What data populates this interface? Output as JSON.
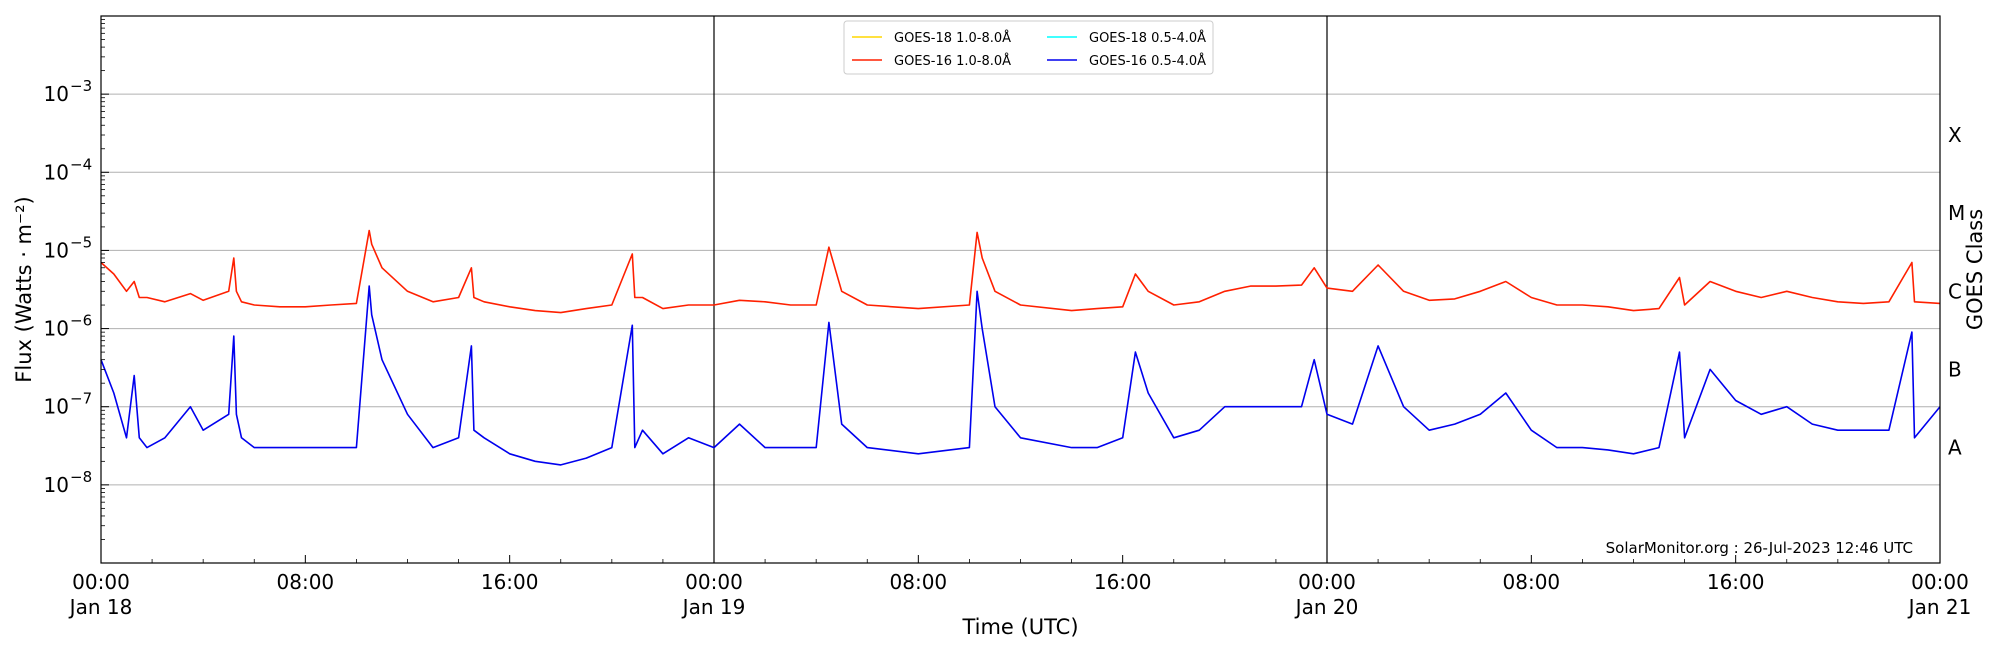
{
  "chart_data": {
    "type": "line",
    "ylabel": "Flux (Watts · m⁻²)",
    "xlabel": "Time (UTC)",
    "right_label": "GOES Class",
    "y_scale": "log",
    "ylim": [
      1e-09,
      0.01
    ],
    "x_range_hours": [
      0,
      72
    ],
    "y_ticks": [
      {
        "exp": -3,
        "label": "10",
        "sup": "−3"
      },
      {
        "exp": -4,
        "label": "10",
        "sup": "−4"
      },
      {
        "exp": -5,
        "label": "10",
        "sup": "−5"
      },
      {
        "exp": -6,
        "label": "10",
        "sup": "−6"
      },
      {
        "exp": -7,
        "label": "10",
        "sup": "−7"
      },
      {
        "exp": -8,
        "label": "10",
        "sup": "−8"
      }
    ],
    "x_ticks": [
      {
        "h": 0,
        "time": "00:00",
        "date": "Jan 18"
      },
      {
        "h": 8,
        "time": "08:00",
        "date": ""
      },
      {
        "h": 16,
        "time": "16:00",
        "date": ""
      },
      {
        "h": 24,
        "time": "00:00",
        "date": "Jan 19"
      },
      {
        "h": 32,
        "time": "08:00",
        "date": ""
      },
      {
        "h": 40,
        "time": "16:00",
        "date": ""
      },
      {
        "h": 48,
        "time": "00:00",
        "date": "Jan 20"
      },
      {
        "h": 56,
        "time": "08:00",
        "date": ""
      },
      {
        "h": 64,
        "time": "16:00",
        "date": ""
      },
      {
        "h": 72,
        "time": "00:00",
        "date": "Jan 21"
      }
    ],
    "day_dividers_hours": [
      24,
      48
    ],
    "grid": "horizontal at decades",
    "legend_placement": "top-center",
    "goes_classes": [
      {
        "label": "X",
        "flux": 0.0003
      },
      {
        "label": "M",
        "flux": 3e-05
      },
      {
        "label": "C",
        "flux": 3e-06
      },
      {
        "label": "B",
        "flux": 3e-07
      },
      {
        "label": "A",
        "flux": 3e-08
      }
    ],
    "credit": "SolarMonitor.org : 26-Jul-2023 12:46 UTC",
    "series": [
      {
        "name": "GOES-18 1.0-8.0Å",
        "color": "#ffd700",
        "x": [],
        "values": []
      },
      {
        "name": "GOES-16 1.0-8.0Å",
        "color": "#ff2000",
        "x": [
          0,
          0.5,
          1,
          1.3,
          1.5,
          1.8,
          2.5,
          3.5,
          4,
          5,
          5.2,
          5.3,
          5.5,
          6,
          7,
          8,
          9,
          10,
          10.5,
          10.6,
          11,
          12,
          13,
          14,
          14.5,
          14.6,
          15,
          16,
          17,
          18,
          19,
          20,
          20.8,
          20.9,
          21.2,
          22,
          23,
          24,
          25,
          26,
          27,
          28,
          28.5,
          29,
          30,
          32,
          34,
          34.3,
          34.5,
          35,
          36,
          38,
          39,
          40,
          40.5,
          41,
          42,
          43,
          44,
          45,
          46,
          47,
          47.5,
          48,
          49,
          50,
          51,
          52,
          53,
          54,
          55,
          56,
          57,
          58,
          59,
          60,
          61,
          61.8,
          62,
          63,
          64,
          65,
          66,
          67,
          68,
          69,
          70,
          70.9,
          71,
          72
        ],
        "values": [
          7e-06,
          5e-06,
          3e-06,
          4e-06,
          2.5e-06,
          2.5e-06,
          2.2e-06,
          2.8e-06,
          2.3e-06,
          3e-06,
          8e-06,
          3e-06,
          2.2e-06,
          2e-06,
          1.9e-06,
          1.9e-06,
          2e-06,
          2.1e-06,
          1.8e-05,
          1.2e-05,
          6e-06,
          3e-06,
          2.2e-06,
          2.5e-06,
          6e-06,
          2.5e-06,
          2.2e-06,
          1.9e-06,
          1.7e-06,
          1.6e-06,
          1.8e-06,
          2e-06,
          9e-06,
          2.5e-06,
          2.5e-06,
          1.8e-06,
          2e-06,
          2e-06,
          2.3e-06,
          2.2e-06,
          2e-06,
          2e-06,
          1.1e-05,
          3e-06,
          2e-06,
          1.8e-06,
          2e-06,
          1.7e-05,
          8e-06,
          3e-06,
          2e-06,
          1.7e-06,
          1.8e-06,
          1.9e-06,
          5e-06,
          3e-06,
          2e-06,
          2.2e-06,
          3e-06,
          3.5e-06,
          3.5e-06,
          3.6e-06,
          6e-06,
          3.3e-06,
          3e-06,
          6.5e-06,
          3e-06,
          2.3e-06,
          2.4e-06,
          3e-06,
          4e-06,
          2.5e-06,
          2e-06,
          2e-06,
          1.9e-06,
          1.7e-06,
          1.8e-06,
          4.5e-06,
          2e-06,
          4e-06,
          3e-06,
          2.5e-06,
          3e-06,
          2.5e-06,
          2.2e-06,
          2.1e-06,
          2.2e-06,
          7e-06,
          2.2e-06,
          2.1e-06
        ]
      },
      {
        "name": "GOES-18 0.5-4.0Å",
        "color": "#00ffff",
        "x": [],
        "values": []
      },
      {
        "name": "GOES-16 0.5-4.0Å",
        "color": "#0000ee",
        "x": [
          0,
          0.5,
          1,
          1.3,
          1.5,
          1.8,
          2.5,
          3.5,
          4,
          5,
          5.2,
          5.3,
          5.5,
          6,
          7,
          8,
          9,
          10,
          10.5,
          10.6,
          11,
          12,
          13,
          14,
          14.5,
          14.6,
          15,
          16,
          17,
          18,
          19,
          20,
          20.8,
          20.9,
          21.2,
          22,
          23,
          24,
          25,
          26,
          27,
          28,
          28.5,
          29,
          30,
          32,
          34,
          34.3,
          34.5,
          35,
          36,
          38,
          39,
          40,
          40.5,
          41,
          42,
          43,
          44,
          45,
          46,
          47,
          47.5,
          48,
          49,
          50,
          51,
          52,
          53,
          54,
          55,
          56,
          57,
          58,
          59,
          60,
          61,
          61.8,
          62,
          63,
          64,
          65,
          66,
          67,
          68,
          69,
          70,
          70.9,
          71,
          72
        ],
        "values": [
          4e-07,
          1.5e-07,
          4e-08,
          2.5e-07,
          4e-08,
          3e-08,
          4e-08,
          1e-07,
          5e-08,
          8e-08,
          8e-07,
          8e-08,
          4e-08,
          3e-08,
          3e-08,
          3e-08,
          3e-08,
          3e-08,
          3.5e-06,
          1.5e-06,
          4e-07,
          8e-08,
          3e-08,
          4e-08,
          6e-07,
          5e-08,
          4e-08,
          2.5e-08,
          2e-08,
          1.8e-08,
          2.2e-08,
          3e-08,
          1.1e-06,
          3e-08,
          5e-08,
          2.5e-08,
          4e-08,
          3e-08,
          6e-08,
          3e-08,
          3e-08,
          3e-08,
          1.2e-06,
          6e-08,
          3e-08,
          2.5e-08,
          3e-08,
          3e-06,
          1e-06,
          1e-07,
          4e-08,
          3e-08,
          3e-08,
          4e-08,
          5e-07,
          1.5e-07,
          4e-08,
          5e-08,
          1e-07,
          1e-07,
          1e-07,
          1e-07,
          4e-07,
          8e-08,
          6e-08,
          6e-07,
          1e-07,
          5e-08,
          6e-08,
          8e-08,
          1.5e-07,
          5e-08,
          3e-08,
          3e-08,
          2.8e-08,
          2.5e-08,
          3e-08,
          5e-07,
          4e-08,
          3e-07,
          1.2e-07,
          8e-08,
          1e-07,
          6e-08,
          5e-08,
          5e-08,
          5e-08,
          9e-07,
          4e-08,
          1e-07
        ]
      }
    ]
  }
}
